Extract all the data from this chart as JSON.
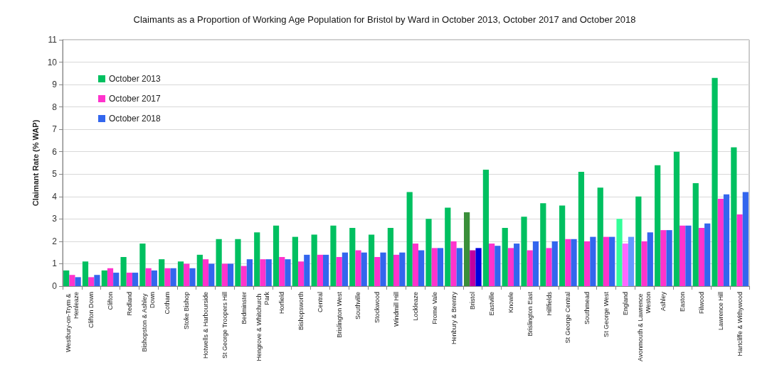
{
  "chart_data": {
    "type": "bar",
    "title": "Claimants as a Proportion of Working Age Population for Bristol by Ward in October 2013, October 2017 and October 2018",
    "ylabel": "Claimant Rate (% WAP)",
    "categories": [
      "Westbury-on-Trym & Henleaze",
      "Clifton Down",
      "Clifton",
      "Redland",
      "Bishopston & Ashley Down",
      "Cotham",
      "Stoke Bishop",
      "Hotwells & Harbourside",
      "St George Troopers Hill",
      "Bedminster",
      "Hengrove & Whitchurch Park",
      "Horfield",
      "Bishopsworth",
      "Central",
      "Brislington West",
      "Southville",
      "Stockwood",
      "Windmill Hill",
      "Lockleaze",
      "Frome Vale",
      "Henbury & Brentry",
      "Bristol",
      "Eastville",
      "Knowle",
      "Brislington East",
      "Hillfields",
      "St George Central",
      "Southmead",
      "St George West",
      "England",
      "Avonmouth & Lawrence Weston",
      "Ashley",
      "Easton",
      "Filwood",
      "Lawrence Hill",
      "Hartcliffe & Withywood"
    ],
    "series": [
      {
        "name": "October 2013",
        "color": "#00c060",
        "colors": [
          "#00c060",
          "#00c060",
          "#00c060",
          "#00c060",
          "#00c060",
          "#00c060",
          "#00c060",
          "#00c060",
          "#00c060",
          "#00c060",
          "#00c060",
          "#00c060",
          "#00c060",
          "#00c060",
          "#00c060",
          "#00c060",
          "#00c060",
          "#00c060",
          "#00c060",
          "#00c060",
          "#00c060",
          "#3a8f3a",
          "#00c060",
          "#00c060",
          "#00c060",
          "#00c060",
          "#00c060",
          "#00c060",
          "#00c060",
          "#33ff99",
          "#00c060",
          "#00c060",
          "#00c060",
          "#00c060",
          "#00c060",
          "#00c060"
        ],
        "values": [
          0.7,
          1.1,
          0.7,
          1.3,
          1.9,
          1.2,
          1.1,
          1.4,
          2.1,
          2.1,
          2.4,
          2.7,
          2.2,
          2.3,
          2.7,
          2.6,
          2.3,
          2.6,
          4.2,
          3.0,
          3.5,
          3.3,
          5.2,
          2.6,
          3.1,
          3.7,
          3.6,
          5.1,
          4.4,
          3.0,
          4.0,
          5.4,
          6.0,
          4.6,
          9.3,
          6.2
        ]
      },
      {
        "name": "October 2017",
        "color": "#ff33cc",
        "colors": [
          "#ff33cc",
          "#ff33cc",
          "#ff33cc",
          "#ff33cc",
          "#ff33cc",
          "#ff33cc",
          "#ff33cc",
          "#ff33cc",
          "#ff33cc",
          "#ff33cc",
          "#ff33cc",
          "#ff33cc",
          "#ff33cc",
          "#ff33cc",
          "#ff33cc",
          "#ff33cc",
          "#ff33cc",
          "#ff33cc",
          "#ff33cc",
          "#ff33cc",
          "#ff33cc",
          "#c000a0",
          "#ff33cc",
          "#ff33cc",
          "#ff33cc",
          "#ff33cc",
          "#ff33cc",
          "#ff33cc",
          "#ff33cc",
          "#ff66ff",
          "#ff33cc",
          "#ff33cc",
          "#ff33cc",
          "#ff33cc",
          "#ff33cc",
          "#ff33cc"
        ],
        "values": [
          0.5,
          0.4,
          0.8,
          0.6,
          0.8,
          0.8,
          1.0,
          1.2,
          1.0,
          0.9,
          1.2,
          1.3,
          1.1,
          1.4,
          1.3,
          1.6,
          1.3,
          1.4,
          1.9,
          1.7,
          2.0,
          1.6,
          1.9,
          1.7,
          1.6,
          1.7,
          2.1,
          2.0,
          2.2,
          1.9,
          2.0,
          2.5,
          2.7,
          2.6,
          3.9,
          3.2
        ]
      },
      {
        "name": "October 2018",
        "color": "#3366ee",
        "colors": [
          "#3366ee",
          "#3366ee",
          "#3366ee",
          "#3366ee",
          "#3366ee",
          "#3366ee",
          "#3366ee",
          "#3366ee",
          "#3366ee",
          "#3366ee",
          "#3366ee",
          "#3366ee",
          "#3366ee",
          "#3366ee",
          "#3366ee",
          "#3366ee",
          "#3366ee",
          "#3366ee",
          "#3366ee",
          "#3366ee",
          "#3366ee",
          "#0000e0",
          "#3366ee",
          "#3366ee",
          "#3366ee",
          "#3366ee",
          "#3366ee",
          "#3366ee",
          "#3366ee",
          "#6699ff",
          "#3366ee",
          "#3366ee",
          "#3366ee",
          "#3366ee",
          "#3366ee",
          "#3366ee"
        ],
        "values": [
          0.4,
          0.5,
          0.6,
          0.6,
          0.7,
          0.8,
          0.8,
          1.0,
          1.0,
          1.2,
          1.2,
          1.2,
          1.4,
          1.4,
          1.5,
          1.5,
          1.5,
          1.5,
          1.6,
          1.7,
          1.7,
          1.7,
          1.8,
          1.9,
          2.0,
          2.0,
          2.1,
          2.2,
          2.2,
          2.2,
          2.4,
          2.5,
          2.7,
          2.8,
          4.1,
          4.2
        ]
      }
    ],
    "ylim": [
      0,
      11
    ],
    "yticks": [
      0,
      1,
      2,
      3,
      4,
      5,
      6,
      7,
      8,
      9,
      10,
      11
    ],
    "grid": "y",
    "legend": "top left"
  }
}
